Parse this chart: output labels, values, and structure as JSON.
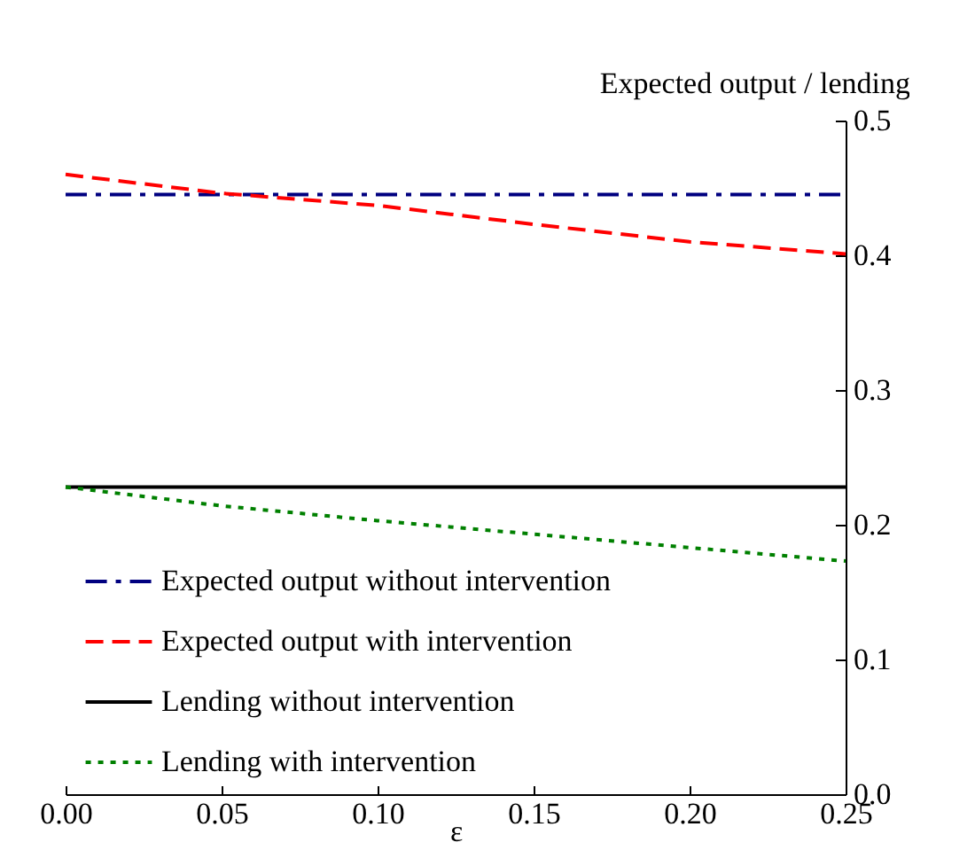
{
  "chart_data": {
    "type": "line",
    "ylabel": "Expected output / lending",
    "xlabel": "ε",
    "x": [
      0,
      0.05,
      0.1,
      0.15,
      0.2,
      0.25
    ],
    "series": [
      {
        "name": "Expected output without intervention",
        "color": "#000080",
        "line_style": "dashdot",
        "values": [
          0.445,
          0.445,
          0.445,
          0.445,
          0.445,
          0.445
        ]
      },
      {
        "name": "Expected output with intervention",
        "color": "#ff0000",
        "line_style": "dashed",
        "values": [
          0.46,
          0.446,
          0.437,
          0.423,
          0.41,
          0.401
        ]
      },
      {
        "name": "Lending without intervention",
        "color": "#000000",
        "line_style": "solid",
        "values": [
          0.228,
          0.228,
          0.228,
          0.228,
          0.228,
          0.228
        ]
      },
      {
        "name": "Lending with intervention",
        "color": "#008000",
        "line_style": "dotted",
        "values": [
          0.228,
          0.214,
          0.203,
          0.193,
          0.183,
          0.173
        ]
      }
    ],
    "xlim": [
      0,
      0.25
    ],
    "xticks": [
      {
        "value": 0,
        "label": "0.00"
      },
      0.05,
      {
        "value": 0.1,
        "label": "0.10"
      },
      0.15,
      {
        "value": 0.2,
        "label": "0.20"
      },
      0.25
    ],
    "ylim": [
      0,
      0.5
    ],
    "yticks": [
      {
        "value": 0,
        "label": "0.0"
      },
      0.1,
      0.2,
      0.3,
      0.4,
      0.5
    ],
    "grid": false,
    "legend": "bottom left",
    "marker": "none"
  }
}
